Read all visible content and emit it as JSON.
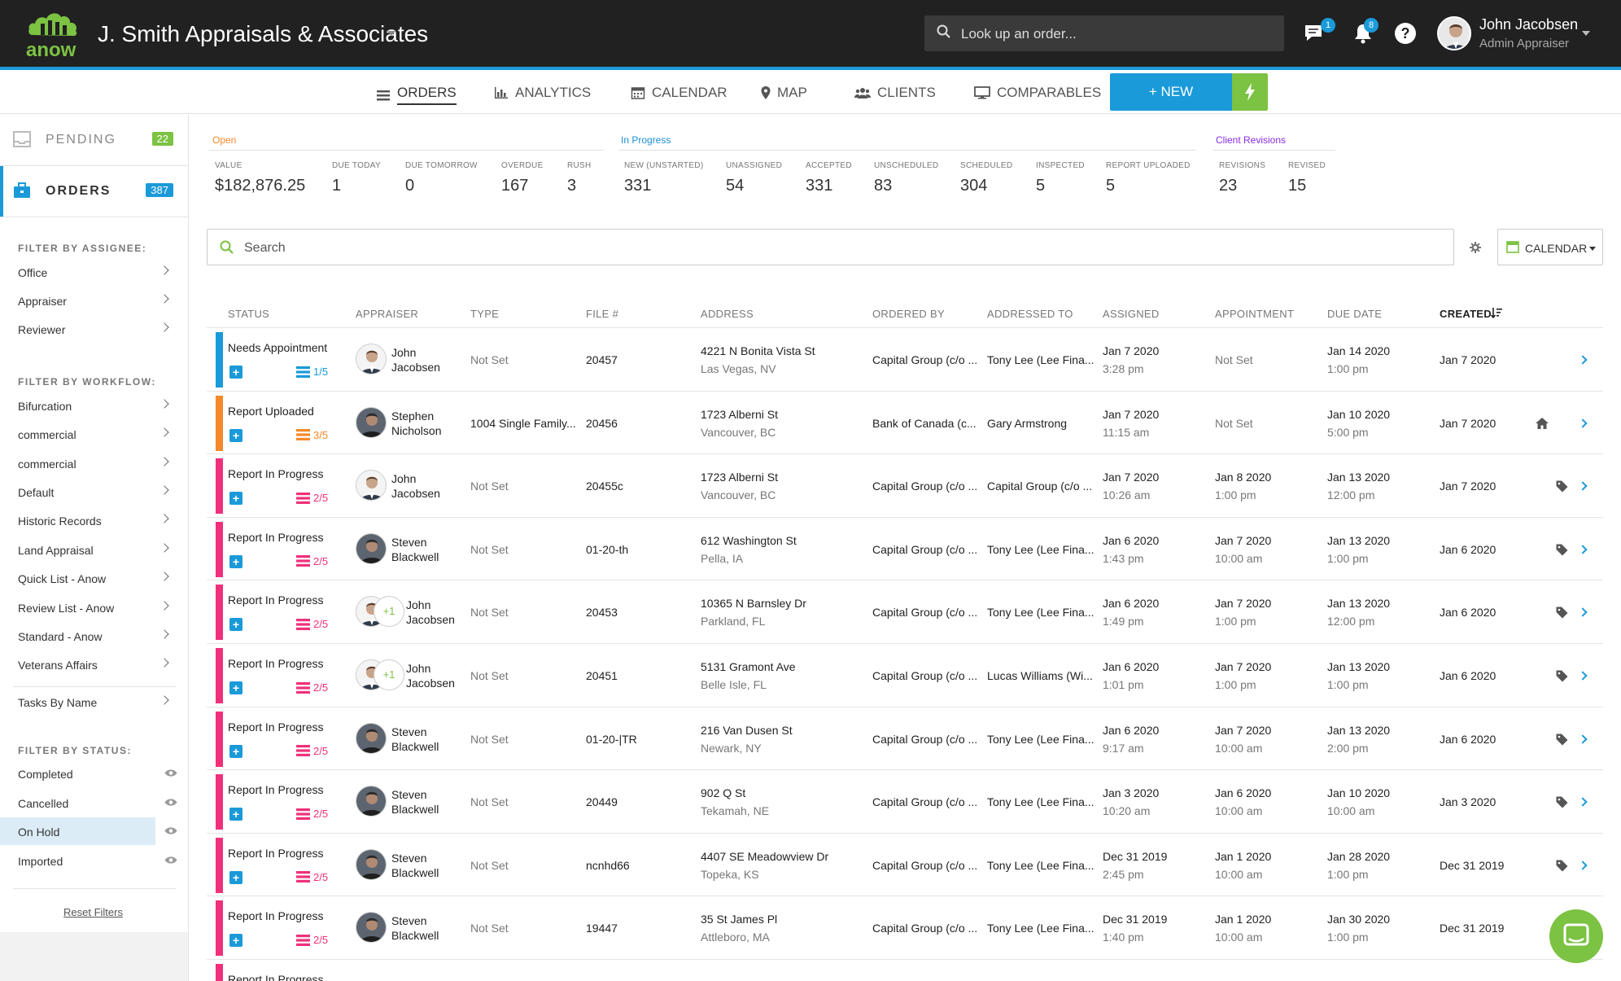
{
  "header": {
    "company": "J. Smith Appraisals & Associates",
    "logo_text": "anow",
    "lookup_placeholder": "Look up an order...",
    "messages_badge": "1",
    "notifications_badge": "8",
    "help_label": "?",
    "user_name": "John Jacobsen",
    "user_role": "Admin Appraiser"
  },
  "nav": {
    "orders": "ORDERS",
    "analytics": "ANALYTICS",
    "calendar": "CALENDAR",
    "map": "MAP",
    "clients": "CLIENTS",
    "comparables": "COMPARABLES",
    "new": "+ NEW"
  },
  "sidebar": {
    "pending_label": "PENDING",
    "pending_count": "22",
    "orders_label": "ORDERS",
    "orders_count": "387",
    "filter_assignee": "FILTER BY ASSIGNEE:",
    "assignee_items": [
      "Office",
      "Appraiser",
      "Reviewer"
    ],
    "filter_workflow": "FILTER BY WORKFLOW:",
    "workflow_items": [
      "Bifurcation",
      "commercial",
      "commercial",
      "Default",
      "Historic Records",
      "Land Appraisal",
      "Quick List - Anow",
      "Review List - Anow",
      "Standard - Anow",
      "Veterans Affairs"
    ],
    "tasks_by_name": "Tasks By Name",
    "filter_status": "FILTER BY STATUS:",
    "status_items": [
      "Completed",
      "Cancelled",
      "On Hold",
      "Imported"
    ],
    "reset": "Reset Filters"
  },
  "stats": {
    "open_label": "Open",
    "in_progress_label": "In Progress",
    "client_revisions_label": "Client Revisions",
    "items": [
      {
        "label": "VALUE",
        "value": "$182,876.25"
      },
      {
        "label": "DUE TODAY",
        "value": "1"
      },
      {
        "label": "DUE TOMORROW",
        "value": "0"
      },
      {
        "label": "OVERDUE",
        "value": "167"
      },
      {
        "label": "RUSH",
        "value": "3"
      },
      {
        "label": "NEW (UNSTARTED)",
        "value": "331"
      },
      {
        "label": "UNASSIGNED",
        "value": "54"
      },
      {
        "label": "ACCEPTED",
        "value": "331"
      },
      {
        "label": "UNSCHEDULED",
        "value": "83"
      },
      {
        "label": "SCHEDULED",
        "value": "304"
      },
      {
        "label": "INSPECTED",
        "value": "5"
      },
      {
        "label": "REPORT UPLOADED",
        "value": "5"
      },
      {
        "label": "REVISIONS",
        "value": "23"
      },
      {
        "label": "REVISED",
        "value": "15"
      }
    ]
  },
  "search": {
    "placeholder": "Search",
    "calendar_button": "CALENDAR"
  },
  "colors": {
    "blue": "#1a9ad9",
    "green": "#7cc243",
    "pink": "#f0307a",
    "orange": "#f5892a",
    "open": "#f5892a",
    "in_progress": "#1a8fd8",
    "revisions": "#8a2be2"
  },
  "table": {
    "headers": [
      "STATUS",
      "APPRAISER",
      "TYPE",
      "FILE #",
      "ADDRESS",
      "ORDERED BY",
      "ADDRESSED TO",
      "ASSIGNED",
      "APPOINTMENT",
      "DUE DATE",
      "CREATED"
    ],
    "rows": [
      {
        "status": "Needs Appointment",
        "progress": "1/5",
        "appraiser": [
          "John",
          "Jacobsen"
        ],
        "plus_one": "",
        "type": "Not Set",
        "file": "20457",
        "addr1": "4221 N Bonita Vista St",
        "addr2": "Las Vegas, NV",
        "ordered_by": "Capital Group (c/o ...",
        "addressed_to": "Tony Lee (Lee Fina...",
        "assigned1": "Jan 7 2020",
        "assigned2": "3:28 pm",
        "appt1": "Not Set",
        "appt2": "",
        "due1": "Jan 14 2020",
        "due2": "1:00 pm",
        "created": "Jan 7 2020"
      },
      {
        "status": "Report Uploaded",
        "progress": "3/5",
        "appraiser": [
          "Stephen",
          "Nicholson"
        ],
        "plus_one": "",
        "type": "1004 Single Family...",
        "file": "20456",
        "addr1": "1723 Alberni St",
        "addr2": "Vancouver, BC",
        "ordered_by": "Bank of Canada (c...",
        "addressed_to": "Gary Armstrong",
        "assigned1": "Jan 7 2020",
        "assigned2": "11:15 am",
        "appt1": "Not Set",
        "appt2": "",
        "due1": "Jan 10 2020",
        "due2": "5:00 pm",
        "created": "Jan 7 2020"
      },
      {
        "status": "Report In Progress",
        "progress": "2/5",
        "appraiser": [
          "John",
          "Jacobsen"
        ],
        "plus_one": "",
        "type": "Not Set",
        "file": "20455c",
        "addr1": "1723 Alberni St",
        "addr2": "Vancouver, BC",
        "ordered_by": "Capital Group (c/o ...",
        "addressed_to": "Capital Group (c/o ...",
        "assigned1": "Jan 7 2020",
        "assigned2": "10:26 am",
        "appt1": "Jan 8 2020",
        "appt2": "1:00 pm",
        "due1": "Jan 13 2020",
        "due2": "12:00 pm",
        "created": "Jan 7 2020"
      },
      {
        "status": "Report In Progress",
        "progress": "2/5",
        "appraiser": [
          "Steven",
          "Blackwell"
        ],
        "plus_one": "",
        "type": "Not Set",
        "file": "01-20-th",
        "addr1": "612 Washington St",
        "addr2": "Pella, IA",
        "ordered_by": "Capital Group (c/o ...",
        "addressed_to": "Tony Lee (Lee Fina...",
        "assigned1": "Jan 6 2020",
        "assigned2": "1:43 pm",
        "appt1": "Jan 7 2020",
        "appt2": "10:00 am",
        "due1": "Jan 13 2020",
        "due2": "1:00 pm",
        "created": "Jan 6 2020"
      },
      {
        "status": "Report In Progress",
        "progress": "2/5",
        "appraiser": [
          "John",
          "Jacobsen"
        ],
        "plus_one": "+1",
        "type": "Not Set",
        "file": "20453",
        "addr1": "10365 N Barnsley Dr",
        "addr2": "Parkland, FL",
        "ordered_by": "Capital Group (c/o ...",
        "addressed_to": "Tony Lee (Lee Fina...",
        "assigned1": "Jan 6 2020",
        "assigned2": "1:49 pm",
        "appt1": "Jan 7 2020",
        "appt2": "1:00 pm",
        "due1": "Jan 13 2020",
        "due2": "12:00 pm",
        "created": "Jan 6 2020"
      },
      {
        "status": "Report In Progress",
        "progress": "2/5",
        "appraiser": [
          "John",
          "Jacobsen"
        ],
        "plus_one": "+1",
        "type": "Not Set",
        "file": "20451",
        "addr1": "5131 Gramont Ave",
        "addr2": "Belle Isle, FL",
        "ordered_by": "Capital Group (c/o ...",
        "addressed_to": "Lucas Williams (Wi...",
        "assigned1": "Jan 6 2020",
        "assigned2": "1:01 pm",
        "appt1": "Jan 7 2020",
        "appt2": "1:00 pm",
        "due1": "Jan 13 2020",
        "due2": "1:00 pm",
        "created": "Jan 6 2020"
      },
      {
        "status": "Report In Progress",
        "progress": "2/5",
        "appraiser": [
          "Steven",
          "Blackwell"
        ],
        "plus_one": "",
        "type": "Not Set",
        "file": "01-20-|TR",
        "addr1": "216 Van Dusen St",
        "addr2": "Newark, NY",
        "ordered_by": "Capital Group (c/o ...",
        "addressed_to": "Tony Lee (Lee Fina...",
        "assigned1": "Jan 6 2020",
        "assigned2": "9:17 am",
        "appt1": "Jan 7 2020",
        "appt2": "10:00 am",
        "due1": "Jan 13 2020",
        "due2": "2:00 pm",
        "created": "Jan 6 2020"
      },
      {
        "status": "Report In Progress",
        "progress": "2/5",
        "appraiser": [
          "Steven",
          "Blackwell"
        ],
        "plus_one": "",
        "type": "Not Set",
        "file": "20449",
        "addr1": "902 Q St",
        "addr2": "Tekamah, NE",
        "ordered_by": "Capital Group (c/o ...",
        "addressed_to": "Tony Lee (Lee Fina...",
        "assigned1": "Jan 3 2020",
        "assigned2": "10:20 am",
        "appt1": "Jan 6 2020",
        "appt2": "10:00 am",
        "due1": "Jan 10 2020",
        "due2": "10:00 am",
        "created": "Jan 3 2020"
      },
      {
        "status": "Report In Progress",
        "progress": "2/5",
        "appraiser": [
          "Steven",
          "Blackwell"
        ],
        "plus_one": "",
        "type": "Not Set",
        "file": "ncnhd66",
        "addr1": "4407 SE Meadowview Dr",
        "addr2": "Topeka, KS",
        "ordered_by": "Capital Group (c/o ...",
        "addressed_to": "Tony Lee (Lee Fina...",
        "assigned1": "Dec 31 2019",
        "assigned2": "2:45 pm",
        "appt1": "Jan 1 2020",
        "appt2": "10:00 am",
        "due1": "Jan 28 2020",
        "due2": "1:00 pm",
        "created": "Dec 31 2019"
      },
      {
        "status": "Report In Progress",
        "progress": "2/5",
        "appraiser": [
          "Steven",
          "Blackwell"
        ],
        "plus_one": "",
        "type": "Not Set",
        "file": "19447",
        "addr1": "35 St James Pl",
        "addr2": "Attleboro, MA",
        "ordered_by": "Capital Group (c/o ...",
        "addressed_to": "Tony Lee (Lee Fina...",
        "assigned1": "Dec 31 2019",
        "assigned2": "1:40 pm",
        "appt1": "Jan 1 2020",
        "appt2": "10:00 am",
        "due1": "Jan 30 2020",
        "due2": "1:00 pm",
        "created": "Dec 31 2019"
      },
      {
        "status": "Report In Progress",
        "progress": "",
        "appraiser": [
          "",
          ""
        ],
        "plus_one": "",
        "type": "",
        "file": "",
        "addr1": "",
        "addr2": "",
        "ordered_by": "",
        "addressed_to": "",
        "assigned1": "",
        "assigned2": "",
        "appt1": "",
        "appt2": "",
        "due1": "",
        "due2": "",
        "created": ""
      }
    ]
  }
}
